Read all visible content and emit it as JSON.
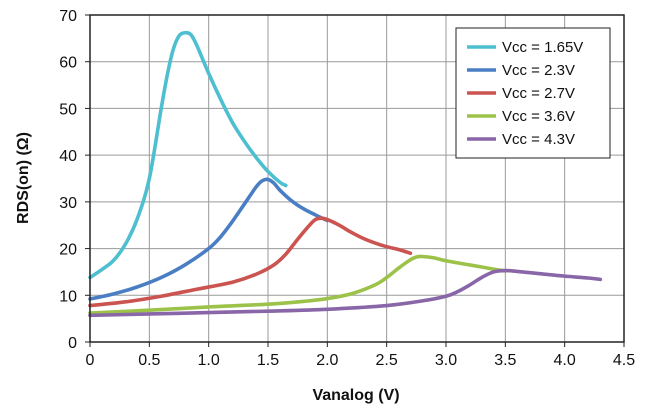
{
  "chart_data": {
    "type": "line",
    "title": "",
    "xlabel": "Vanalog (V)",
    "ylabel": "RDS(on) (Ω)",
    "xlim": [
      0,
      4.5
    ],
    "ylim": [
      0,
      70
    ],
    "x_ticks": [
      0,
      0.5,
      1.0,
      1.5,
      2.0,
      2.5,
      3.0,
      3.5,
      4.0,
      4.5
    ],
    "x_tick_labels": [
      "0",
      "0.5",
      "1.0",
      "1.5",
      "2.0",
      "2.5",
      "3.0",
      "3.5",
      "4.0",
      "4.5"
    ],
    "y_ticks": [
      0,
      10,
      20,
      30,
      40,
      50,
      60,
      70
    ],
    "y_tick_labels": [
      "0",
      "10",
      "20",
      "30",
      "40",
      "50",
      "60",
      "70"
    ],
    "grid": true,
    "legend_position": "top-right",
    "series": [
      {
        "name": "Vcc = 1.65V",
        "color": "#4dbfd0",
        "x": [
          0,
          0.1,
          0.2,
          0.3,
          0.4,
          0.5,
          0.6,
          0.65,
          0.7,
          0.75,
          0.8,
          0.85,
          0.9,
          1.0,
          1.1,
          1.2,
          1.3,
          1.4,
          1.5,
          1.6,
          1.65
        ],
        "y": [
          13.8,
          15.5,
          17.5,
          21,
          26.5,
          35,
          50,
          57,
          62.5,
          65.5,
          66.2,
          65.8,
          63.5,
          57.5,
          52,
          47,
          43,
          39.5,
          36.5,
          34.2,
          33.5
        ]
      },
      {
        "name": "Vcc = 2.3V",
        "color": "#4a7ec4",
        "x": [
          0,
          0.2,
          0.4,
          0.6,
          0.8,
          1.0,
          1.1,
          1.2,
          1.3,
          1.4,
          1.45,
          1.5,
          1.55,
          1.6,
          1.7,
          1.8,
          1.9,
          2.0
        ],
        "y": [
          9.2,
          10.3,
          11.8,
          13.8,
          16.5,
          20,
          22.5,
          25.8,
          29.5,
          33.2,
          34.5,
          34.8,
          34,
          32.5,
          30.2,
          28.5,
          27.2,
          26
        ]
      },
      {
        "name": "Vcc = 2.7V",
        "color": "#cb5450",
        "x": [
          0,
          0.3,
          0.6,
          0.9,
          1.2,
          1.4,
          1.55,
          1.65,
          1.75,
          1.85,
          1.9,
          1.95,
          2.0,
          2.1,
          2.2,
          2.3,
          2.4,
          2.5,
          2.6,
          2.7
        ],
        "y": [
          7.8,
          8.6,
          9.8,
          11.3,
          12.8,
          14.5,
          16.5,
          18.8,
          22,
          25,
          26.2,
          26.5,
          26.2,
          25,
          23.5,
          22.2,
          21.2,
          20.4,
          19.8,
          19
        ]
      },
      {
        "name": "Vcc = 3.6V",
        "color": "#9cc24a",
        "x": [
          0,
          0.5,
          1.0,
          1.5,
          1.8,
          2.0,
          2.2,
          2.4,
          2.5,
          2.6,
          2.7,
          2.75,
          2.8,
          2.9,
          3.0,
          3.2,
          3.4,
          3.5
        ],
        "y": [
          6.2,
          6.8,
          7.5,
          8.1,
          8.7,
          9.3,
          10.3,
          12.2,
          13.8,
          15.8,
          17.6,
          18.2,
          18.3,
          18,
          17.4,
          16.5,
          15.6,
          15.2
        ]
      },
      {
        "name": "Vcc = 4.3V",
        "color": "#8966a8",
        "x": [
          0,
          0.5,
          1.0,
          1.5,
          2.0,
          2.5,
          2.8,
          3.0,
          3.1,
          3.2,
          3.3,
          3.4,
          3.5,
          3.6,
          3.8,
          4.0,
          4.2,
          4.3
        ],
        "y": [
          5.7,
          6.0,
          6.3,
          6.6,
          7.0,
          7.8,
          8.8,
          9.8,
          10.8,
          12.2,
          13.8,
          15,
          15.3,
          15.1,
          14.6,
          14.1,
          13.7,
          13.4
        ]
      }
    ]
  }
}
